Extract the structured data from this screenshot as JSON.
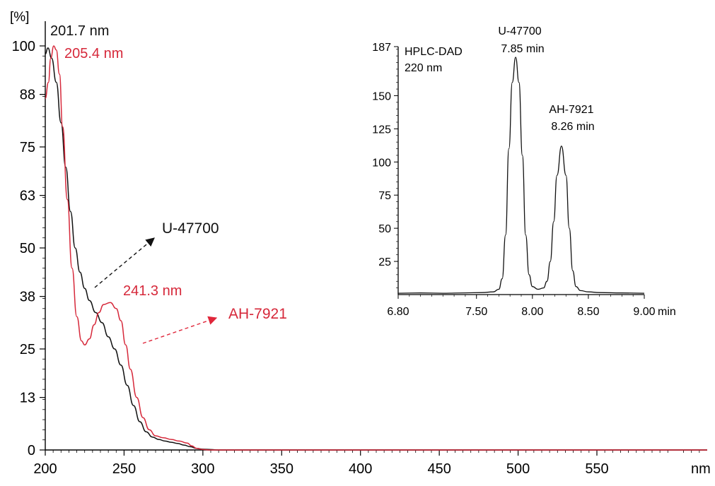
{
  "chart_data": [
    {
      "type": "line",
      "xlabel": "nm",
      "ylabel": "[%]",
      "xlim": [
        200,
        620
      ],
      "ylim": [
        0,
        100
      ],
      "xticks": [
        200,
        250,
        300,
        350,
        400,
        450,
        500,
        550
      ],
      "yticks": [
        0,
        13,
        25,
        38,
        50,
        63,
        75,
        88,
        100
      ],
      "grid": false,
      "series": [
        {
          "name": "U-47700",
          "color": "#111111",
          "x": [
            200,
            201.7,
            204,
            207,
            210,
            213,
            216,
            219,
            222,
            225,
            228,
            232,
            236,
            240,
            244,
            248,
            252,
            256,
            260,
            264,
            268,
            272,
            276,
            280,
            284,
            288,
            292,
            296,
            300,
            305,
            310,
            320,
            340,
            400,
            500,
            620
          ],
          "y": [
            98,
            99.5,
            97,
            91,
            81,
            70,
            59,
            50,
            44,
            40,
            37,
            34,
            31.5,
            28,
            25,
            21,
            16,
            11,
            7,
            4.5,
            3.2,
            2.6,
            2.2,
            1.9,
            1.6,
            1.2,
            0.8,
            0.4,
            0.2,
            0.1,
            0,
            0,
            0,
            0,
            0,
            0
          ]
        },
        {
          "name": "AH-7921",
          "color": "#d6283a",
          "x": [
            200,
            202,
            203.5,
            205.4,
            207,
            209,
            211,
            214,
            217,
            220,
            223,
            225,
            228,
            231,
            234,
            237,
            241.3,
            245,
            248,
            251,
            254,
            258,
            262,
            266,
            270,
            275,
            280,
            285,
            290,
            293,
            296,
            300,
            305,
            320,
            400,
            620
          ],
          "y": [
            87,
            91,
            97,
            100,
            99,
            93,
            80,
            62,
            45,
            33,
            27,
            26,
            27.5,
            31,
            34,
            36,
            36.5,
            35,
            32,
            26,
            20,
            13,
            8,
            5,
            3.5,
            3.0,
            2.6,
            2.2,
            1.7,
            1.0,
            0.4,
            0.1,
            0,
            0,
            0,
            0
          ]
        }
      ],
      "annotations": [
        {
          "text": "201.7 nm",
          "color": "#111111"
        },
        {
          "text": "205.4 nm",
          "color": "#d6283a"
        },
        {
          "text": "241.3 nm",
          "color": "#d6283a"
        },
        {
          "text": "U-47700",
          "color": "#111111"
        },
        {
          "text": "AH-7921",
          "color": "#d6283a"
        }
      ]
    },
    {
      "type": "line",
      "title": "HPLC-DAD",
      "subtitle": "220 nm",
      "xlabel": "min",
      "xlim": [
        6.8,
        9.0
      ],
      "ylim": [
        0,
        187
      ],
      "xtick_labels": [
        "6.80",
        "7.50",
        "8.00",
        "8.50",
        "9.00"
      ],
      "xticks": [
        6.8,
        7.5,
        8.0,
        8.5,
        9.0
      ],
      "yticks": [
        25,
        50,
        75,
        100,
        125,
        150,
        187
      ],
      "grid": false,
      "series": [
        {
          "color": "#111111",
          "x": [
            6.8,
            7.0,
            7.2,
            7.4,
            7.55,
            7.65,
            7.7,
            7.73,
            7.76,
            7.79,
            7.82,
            7.85,
            7.88,
            7.91,
            7.94,
            7.97,
            8.0,
            8.05,
            8.1,
            8.13,
            8.16,
            8.19,
            8.22,
            8.26,
            8.3,
            8.33,
            8.36,
            8.39,
            8.43,
            8.5,
            8.6,
            8.8,
            9.0
          ],
          "y": [
            1,
            1.2,
            1,
            1.3,
            1.5,
            2,
            4,
            12,
            45,
            110,
            160,
            179,
            160,
            105,
            45,
            15,
            6,
            4,
            5,
            10,
            25,
            55,
            90,
            112,
            90,
            50,
            18,
            6,
            3,
            2,
            1.5,
            1.2,
            1
          ]
        }
      ],
      "annotations": [
        {
          "name": "U-47700",
          "time": "7.85 min"
        },
        {
          "name": "AH-7921",
          "time": "8.26 min"
        }
      ]
    }
  ]
}
